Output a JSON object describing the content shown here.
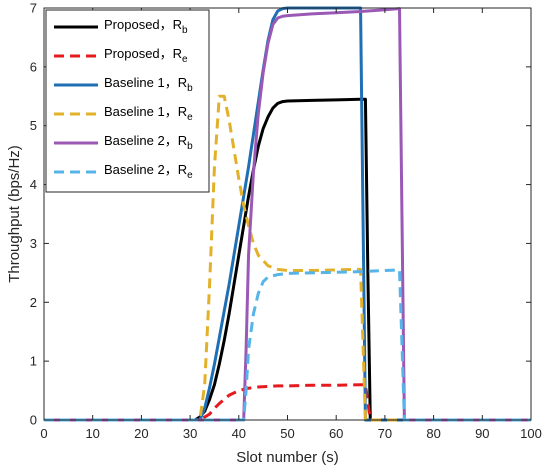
{
  "chart_data": {
    "type": "line",
    "xlabel": "Slot number (s)",
    "ylabel": "Throughput (bps/Hz)",
    "xlim": [
      0,
      100
    ],
    "ylim": [
      0,
      7
    ],
    "xticks": [
      0,
      10,
      20,
      30,
      40,
      50,
      60,
      70,
      80,
      90,
      100
    ],
    "yticks": [
      0,
      1,
      2,
      3,
      4,
      5,
      6,
      7
    ],
    "grid": false,
    "legend_position": "top-left",
    "series": [
      {
        "name": "Proposed，R",
        "subscript": "b",
        "color": "#000000",
        "dash": "solid",
        "x": [
          0,
          31,
          32,
          33,
          34,
          35,
          36,
          37,
          38,
          39,
          40,
          41,
          42,
          43,
          44,
          45,
          46,
          47,
          48,
          49,
          50,
          55,
          60,
          65,
          66,
          66.5,
          67,
          100
        ],
        "y": [
          0,
          0,
          0.05,
          0.15,
          0.35,
          0.6,
          0.95,
          1.35,
          1.8,
          2.3,
          2.8,
          3.3,
          3.8,
          4.25,
          4.65,
          4.95,
          5.15,
          5.3,
          5.38,
          5.41,
          5.42,
          5.43,
          5.44,
          5.45,
          5.45,
          2.5,
          0,
          0
        ]
      },
      {
        "name": "Proposed，R",
        "subscript": "e",
        "color": "#e41a1c",
        "dash": "dashed",
        "x": [
          0,
          32,
          33,
          34,
          35,
          36,
          37,
          38,
          40,
          42,
          44,
          46,
          48,
          50,
          55,
          60,
          65,
          66,
          66.5,
          67,
          100
        ],
        "y": [
          0,
          0,
          0.05,
          0.1,
          0.2,
          0.28,
          0.35,
          0.42,
          0.5,
          0.54,
          0.56,
          0.57,
          0.58,
          0.58,
          0.59,
          0.59,
          0.6,
          0.6,
          0.3,
          0,
          0
        ]
      },
      {
        "name": "Baseline 1，R",
        "subscript": "b",
        "color": "#1f6fb4",
        "dash": "solid",
        "x": [
          0,
          32,
          33,
          34,
          35,
          36,
          37,
          38,
          39,
          40,
          41,
          42,
          43,
          44,
          45,
          46,
          47,
          48,
          49,
          50,
          55,
          60,
          65,
          65.5,
          66,
          100
        ],
        "y": [
          0,
          0,
          0.2,
          0.55,
          0.95,
          1.4,
          1.85,
          2.3,
          2.8,
          3.3,
          3.8,
          4.3,
          4.85,
          5.4,
          5.95,
          6.45,
          6.8,
          6.95,
          6.99,
          7,
          7,
          7,
          7,
          3.5,
          0,
          0
        ]
      },
      {
        "name": "Baseline 1，R",
        "subscript": "e",
        "color": "#e3b02a",
        "dash": "dashed",
        "x": [
          0,
          32,
          33,
          34,
          35,
          36,
          37,
          38,
          39,
          40,
          41,
          42,
          43,
          44,
          46,
          48,
          50,
          55,
          60,
          65,
          65.5,
          66,
          100
        ],
        "y": [
          0,
          0,
          0.6,
          2.3,
          4.3,
          5.5,
          5.5,
          5.1,
          4.6,
          4.1,
          3.65,
          3.3,
          3.0,
          2.8,
          2.62,
          2.56,
          2.54,
          2.54,
          2.55,
          2.56,
          1.3,
          0,
          0
        ]
      },
      {
        "name": "Baseline 2，R",
        "subscript": "b",
        "color": "#9b59b6",
        "dash": "solid",
        "x": [
          0,
          41,
          41.5,
          42,
          43,
          44,
          45,
          46,
          47,
          48,
          49,
          50,
          55,
          60,
          65,
          70,
          73,
          73.5,
          74,
          100
        ],
        "y": [
          0,
          0,
          1.2,
          2.8,
          4.2,
          5.2,
          5.9,
          6.4,
          6.72,
          6.83,
          6.86,
          6.87,
          6.9,
          6.92,
          6.94,
          6.97,
          6.99,
          3.5,
          0,
          0
        ]
      },
      {
        "name": "Baseline 2，R",
        "subscript": "e",
        "color": "#56b4e9",
        "dash": "dashed",
        "x": [
          0,
          41,
          41.5,
          42,
          43,
          44,
          45,
          46,
          48,
          50,
          55,
          60,
          65,
          70,
          73,
          73.5,
          74,
          100
        ],
        "y": [
          0,
          0,
          0.5,
          1.2,
          1.8,
          2.15,
          2.35,
          2.43,
          2.47,
          2.49,
          2.5,
          2.51,
          2.52,
          2.54,
          2.55,
          1.3,
          0,
          0
        ]
      }
    ]
  }
}
